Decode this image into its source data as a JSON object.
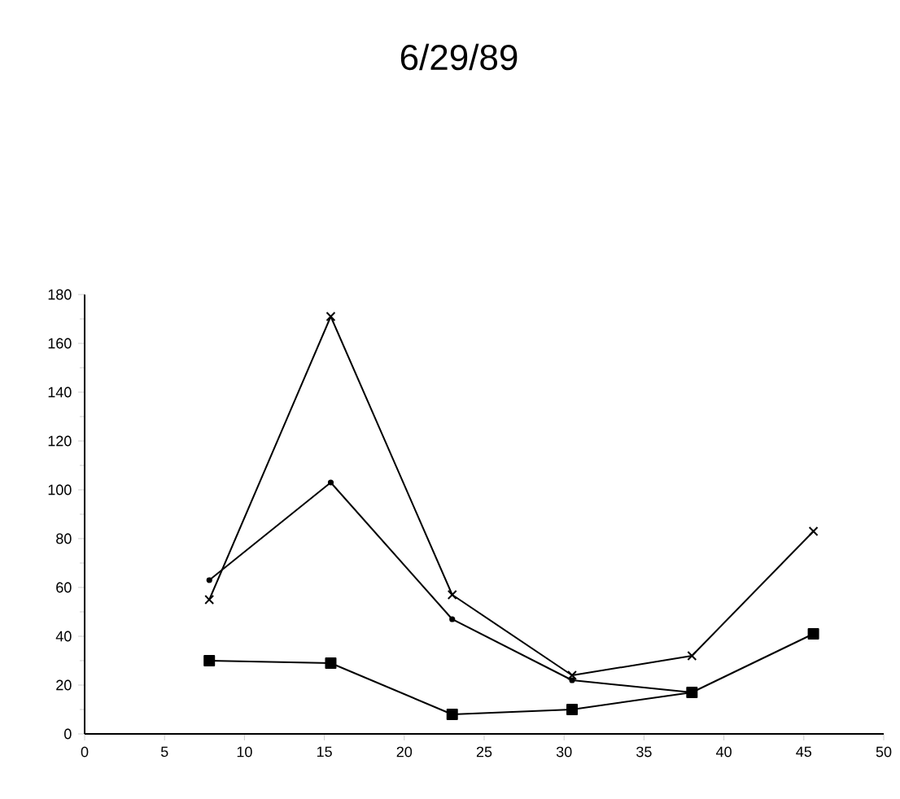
{
  "chart_data": {
    "type": "line",
    "title": "6/29/89",
    "x": [
      7.8,
      15.4,
      23,
      30.5,
      38,
      45.6
    ],
    "series": [
      {
        "color": "#000000",
        "marker": "cross",
        "values": [
          55,
          171,
          57,
          24,
          32,
          83
        ]
      },
      {
        "color": "#000000",
        "marker": "circle",
        "values": [
          63,
          103,
          47,
          22,
          17,
          null
        ]
      },
      {
        "color": "#000000",
        "marker": "square",
        "values": [
          30,
          29,
          8,
          10,
          17,
          41
        ]
      }
    ],
    "xlim": [
      0,
      50
    ],
    "xticks": [
      0,
      5,
      10,
      15,
      20,
      25,
      30,
      35,
      40,
      45,
      50
    ],
    "ylim": [
      0,
      180
    ],
    "yticks": [
      0,
      20,
      40,
      60,
      80,
      100,
      120,
      140,
      160,
      180
    ],
    "grid": false
  }
}
